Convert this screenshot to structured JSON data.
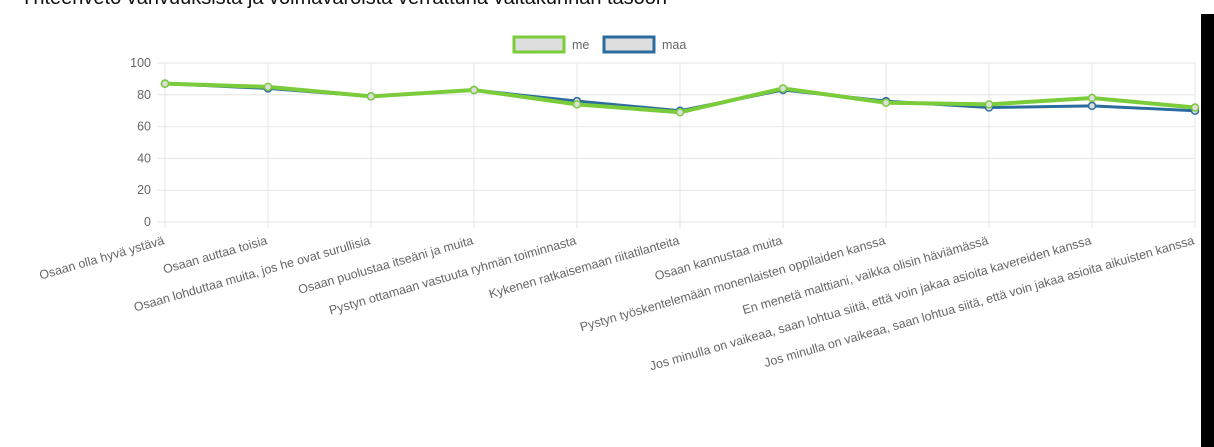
{
  "chart_data": {
    "type": "line",
    "title": "Yhteenveto vahvuuksista ja voimavaroista verrattuna valtakunnan tasoon",
    "categories": [
      "Osaan olla hyvä ystävä",
      "Osaan auttaa toisia",
      "Osaan lohduttaa muita, jos he ovat surullisia",
      "Osaan puolustaa itseäni ja muita",
      "Pystyn ottamaan vastuuta ryhmän toiminnasta",
      "Kykenen ratkaisemaan riitatilanteita",
      "Osaan kannustaa muita",
      "Pystyn työskentelemään monenlaisten oppilaiden kanssa",
      "En menetä malttiani, vaikka olisin häviämässä",
      "Jos minulla on vaikeaa, saan lohtua siitä, että voin jakaa asioita kavereiden kanssa",
      "Jos minulla on vaikeaa, saan lohtua siitä, että voin jakaa asioita aikuisten kanssa"
    ],
    "series": [
      {
        "name": "me",
        "color": "#7acc3a",
        "values": [
          87,
          85,
          79,
          83,
          74,
          69,
          84,
          75,
          74,
          78,
          72
        ]
      },
      {
        "name": "maa",
        "color": "#2b6c9e",
        "values": [
          87,
          84,
          79,
          83,
          76,
          70,
          83,
          76,
          72,
          73,
          70
        ]
      }
    ],
    "ylim": [
      0,
      100
    ],
    "yticks": [
      0,
      20,
      40,
      60,
      80,
      100
    ],
    "grid": true,
    "legend": "top"
  }
}
